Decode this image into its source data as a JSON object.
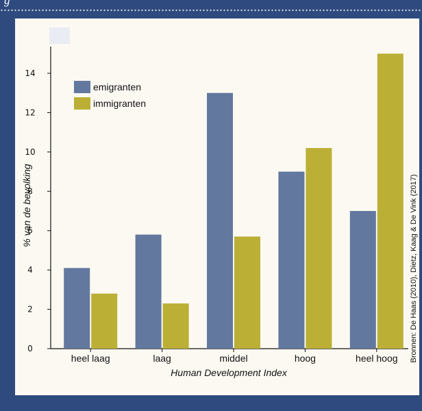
{
  "header": {
    "title": "g"
  },
  "chart_data": {
    "type": "bar",
    "categories": [
      "heel laag",
      "laag",
      "middel",
      "hoog",
      "heel hoog"
    ],
    "series": [
      {
        "name": "emigranten",
        "values": [
          4.1,
          5.8,
          13.0,
          9.0,
          7.0
        ],
        "color": "#63789f"
      },
      {
        "name": "immigranten",
        "values": [
          2.8,
          2.3,
          5.7,
          10.2,
          15.0
        ],
        "color": "#bbb035"
      }
    ],
    "xlabel": "Human Development Index",
    "ylabel": "% van de bevolking",
    "ylim": [
      0,
      15.2
    ],
    "yticks": [
      0,
      2,
      4,
      6,
      8,
      10,
      12,
      14
    ],
    "legend_position": "top-left",
    "grid": false,
    "source_note": "Bronnen: De Haas (2010), Dietz, Kaag & De Vink (2017)"
  }
}
